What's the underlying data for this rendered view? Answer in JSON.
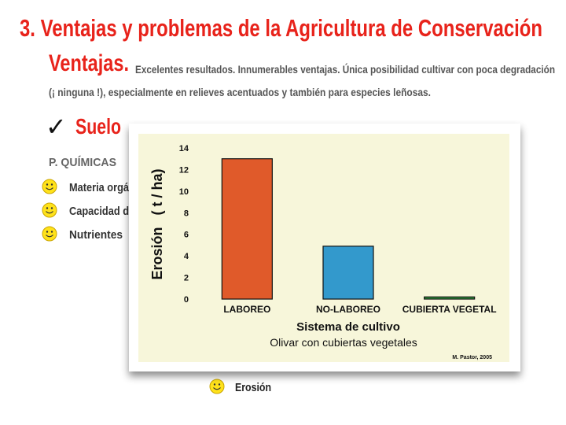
{
  "slide": {
    "title": "3.  Ventajas y problemas de la Agricultura de Conservación",
    "ventajas_label": "Ventajas.",
    "description_lines": [
      "Excelentes resultados. Innumerables ventajas. Única posibilidad cultivar con poca degradación",
      "(¡ ninguna !), especialmente en relieves acentuados y también para especies leñosas."
    ],
    "check": "✓",
    "section": "Suelo",
    "group": "P. QUÍMICAS",
    "bullets": [
      "Materia orgá",
      "Capacidad d",
      "Nutrientes"
    ],
    "bottom_bullet": "Erosión"
  },
  "chart_data": {
    "type": "bar",
    "ylabel": "Erosión   ( t / ha)",
    "xlabel": "Sistema de cultivo",
    "subtitle": "Olivar con cubiertas vegetales",
    "credit": "M. Pastor, 2005",
    "categories": [
      "LABOREO",
      "NO-LABOREO",
      "CUBIERTA VEGETAL"
    ],
    "values": [
      13,
      4.9,
      0.2
    ],
    "colors": [
      "#e05a2a",
      "#3399cc",
      "#2e9a3c"
    ],
    "ylim": [
      0,
      14
    ],
    "yticks": [
      0,
      2,
      4,
      6,
      8,
      10,
      12,
      14
    ]
  }
}
